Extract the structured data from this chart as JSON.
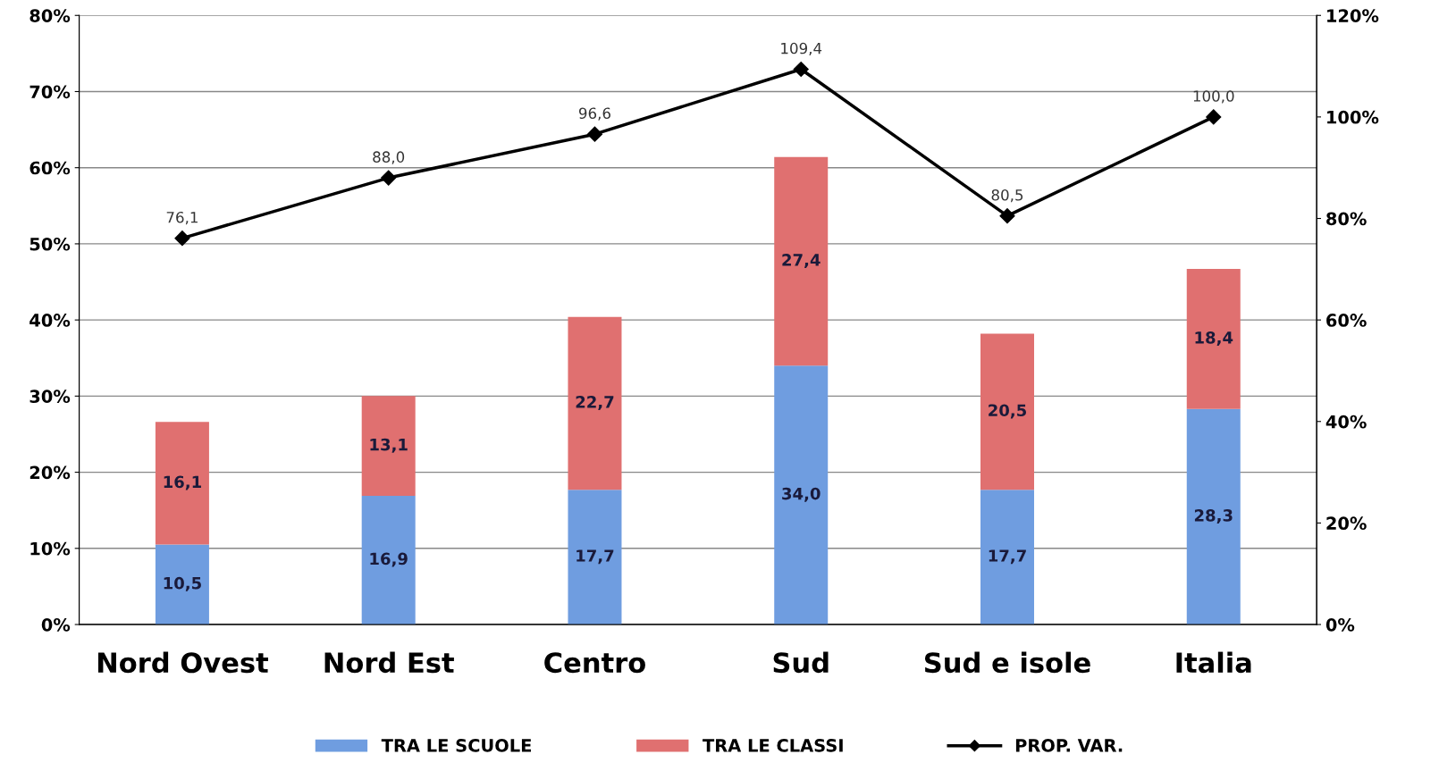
{
  "chart_data": {
    "type": "bar",
    "stacked": true,
    "categories": [
      "Nord Ovest",
      "Nord Est",
      "Centro",
      "Sud",
      "Sud e isole",
      "Italia"
    ],
    "series": [
      {
        "name": "TRA LE SCUOLE",
        "color": "#6f9de0",
        "values": [
          10.5,
          16.9,
          17.7,
          34.0,
          17.7,
          28.3
        ],
        "value_labels": [
          "10,5",
          "16,9",
          "17,7",
          "34,0",
          "17,7",
          "28,3"
        ]
      },
      {
        "name": "TRA LE CLASSI",
        "color": "#e07070",
        "values": [
          16.1,
          13.1,
          22.7,
          27.4,
          20.5,
          18.4
        ],
        "value_labels": [
          "16,1",
          "13,1",
          "22,7",
          "27,4",
          "20,5",
          "18,4"
        ]
      },
      {
        "name": "PROP. VAR.",
        "type": "line",
        "axis": "y2",
        "color": "#000000",
        "marker": "diamond",
        "values": [
          76.1,
          88.0,
          96.6,
          109.4,
          80.5,
          100.0
        ],
        "value_labels": [
          "76,1",
          "88,0",
          "96,6",
          "109,4",
          "80,5",
          "100,0"
        ]
      }
    ],
    "ylim": [
      0,
      80
    ],
    "yticks": [
      {
        "value": 0,
        "label": "0%"
      },
      {
        "value": 10,
        "label": "10%"
      },
      {
        "value": 20,
        "label": "20%"
      },
      {
        "value": 30,
        "label": "30%"
      },
      {
        "value": 40,
        "label": "40%"
      },
      {
        "value": 50,
        "label": "50%"
      },
      {
        "value": 60,
        "label": "60%"
      },
      {
        "value": 70,
        "label": "70%"
      },
      {
        "value": 80,
        "label": "80%"
      }
    ],
    "y2lim": [
      0,
      120
    ],
    "y2ticks": [
      {
        "value": 0,
        "label": "0%"
      },
      {
        "value": 20,
        "label": "20%"
      },
      {
        "value": 40,
        "label": "40%"
      },
      {
        "value": 60,
        "label": "60%"
      },
      {
        "value": 80,
        "label": "80%"
      },
      {
        "value": 100,
        "label": "100%"
      },
      {
        "value": 120,
        "label": "120%"
      }
    ],
    "grid": "y",
    "legend": "bottom"
  }
}
